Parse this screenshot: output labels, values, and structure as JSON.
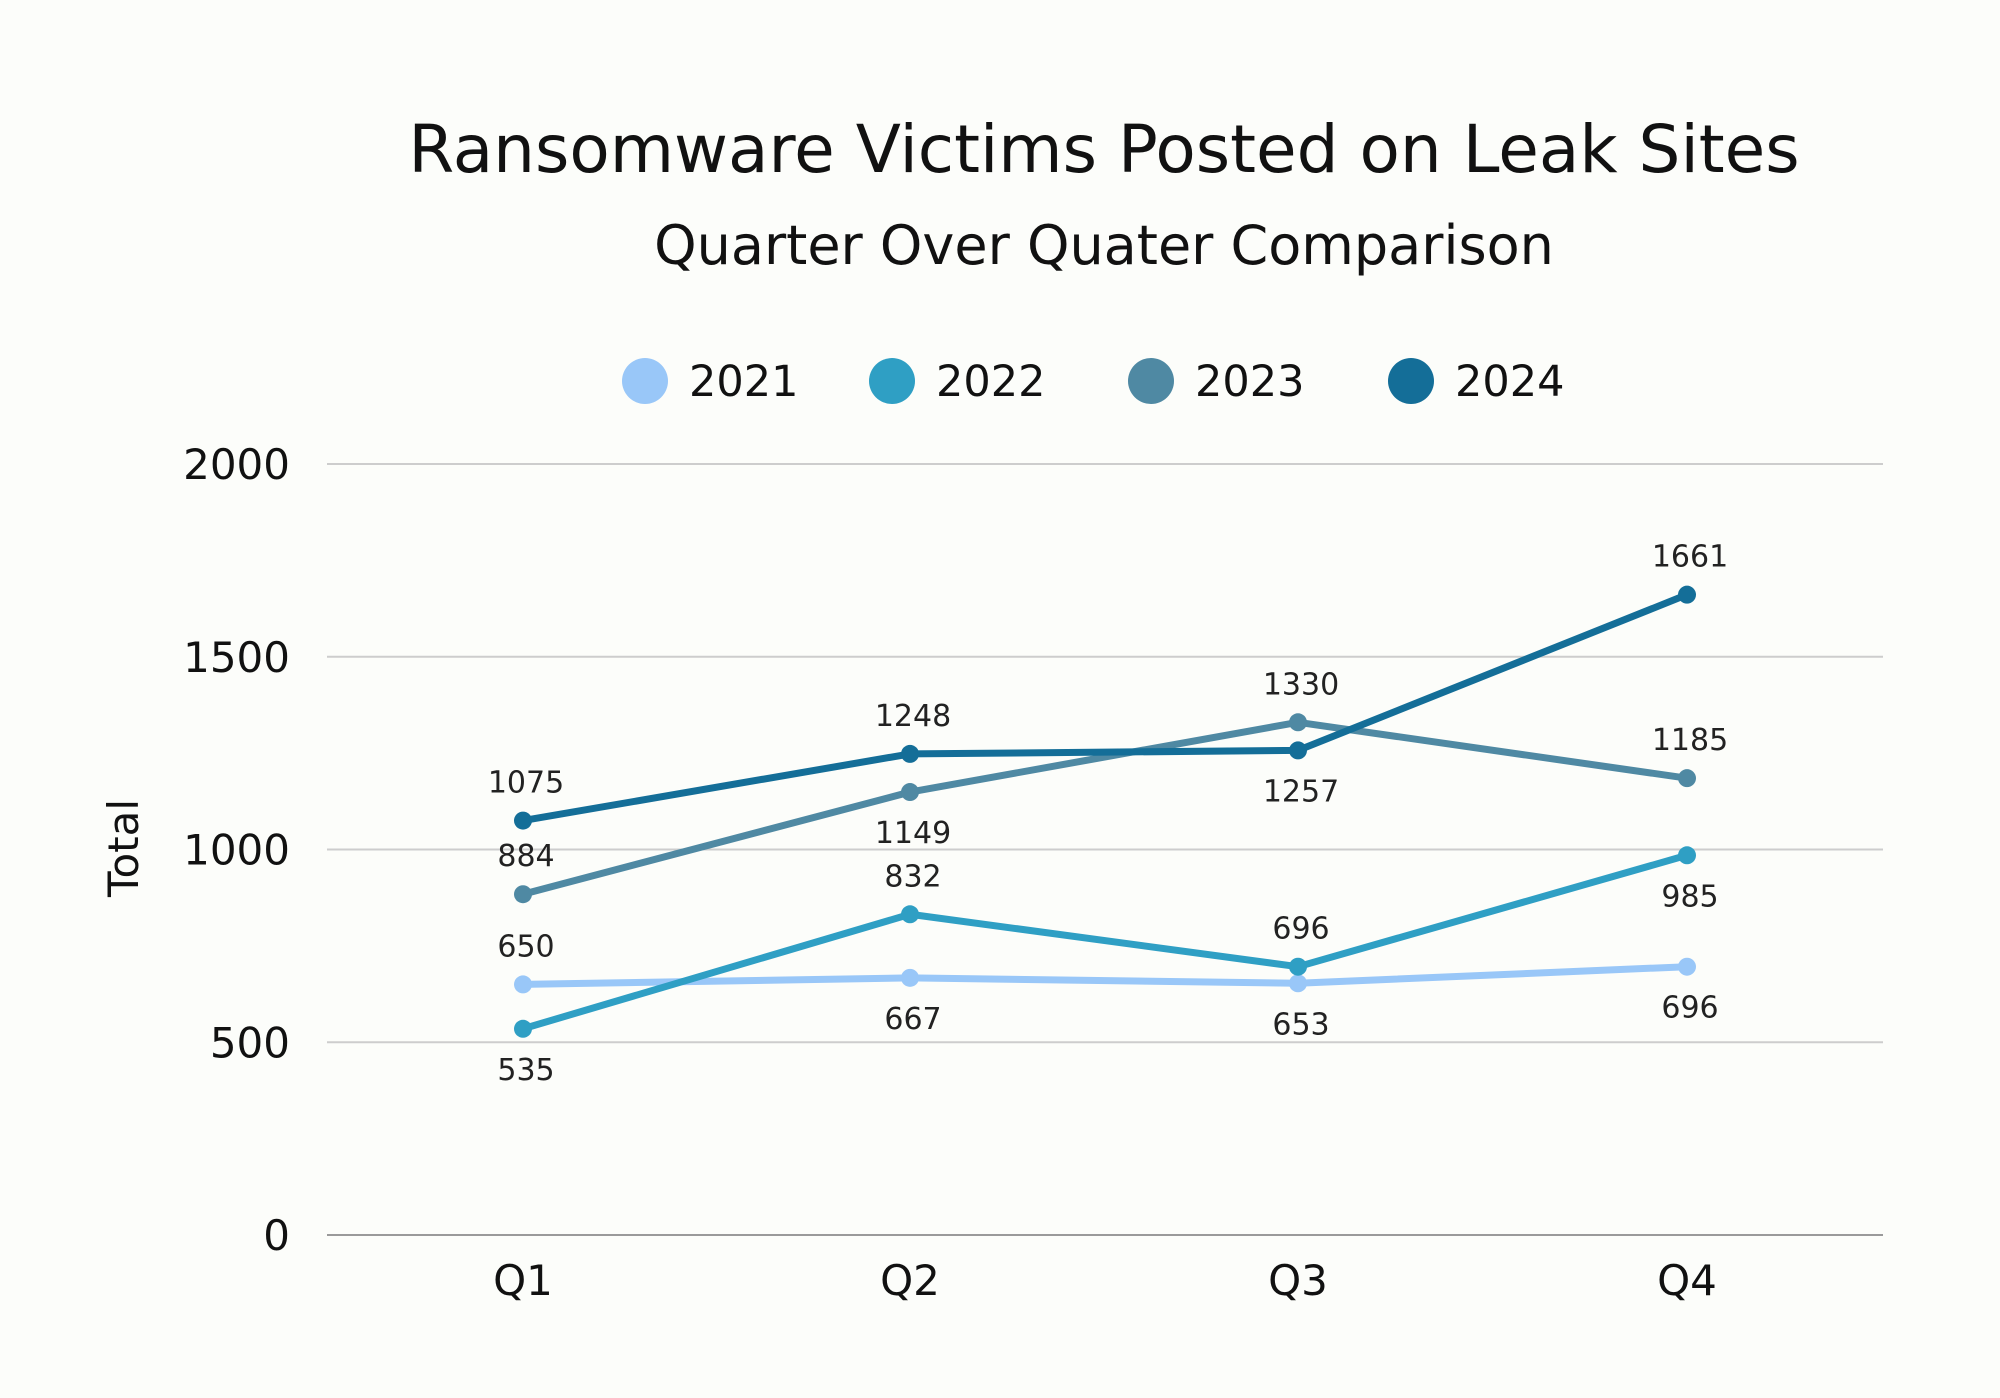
{
  "chart_data": {
    "type": "line",
    "title": "Ransomware Victims Posted on Leak Sites",
    "subtitle": "Quarter Over Quater Comparison",
    "xlabel": "",
    "ylabel": "Total",
    "categories": [
      "Q1",
      "Q2",
      "Q3",
      "Q4"
    ],
    "ylim": [
      0,
      2000
    ],
    "yticks": [
      0,
      500,
      1000,
      1500,
      2000
    ],
    "grid": true,
    "legend_position": "top-center",
    "series": [
      {
        "name": "2021",
        "color": "#99c7f8",
        "values": [
          650,
          667,
          653,
          696
        ],
        "label_positions": [
          "above",
          "below",
          "below",
          "below"
        ]
      },
      {
        "name": "2022",
        "color": "#2f9fc4",
        "values": [
          535,
          832,
          696,
          985
        ],
        "label_positions": [
          "below",
          "above",
          "above",
          "below"
        ]
      },
      {
        "name": "2023",
        "color": "#4f89a3",
        "values": [
          884,
          1149,
          1330,
          1185
        ],
        "label_positions": [
          "above",
          "below",
          "above",
          "above"
        ]
      },
      {
        "name": "2024",
        "color": "#146e98",
        "values": [
          1075,
          1248,
          1257,
          1661
        ],
        "label_positions": [
          "above",
          "above",
          "below",
          "above"
        ]
      }
    ]
  }
}
